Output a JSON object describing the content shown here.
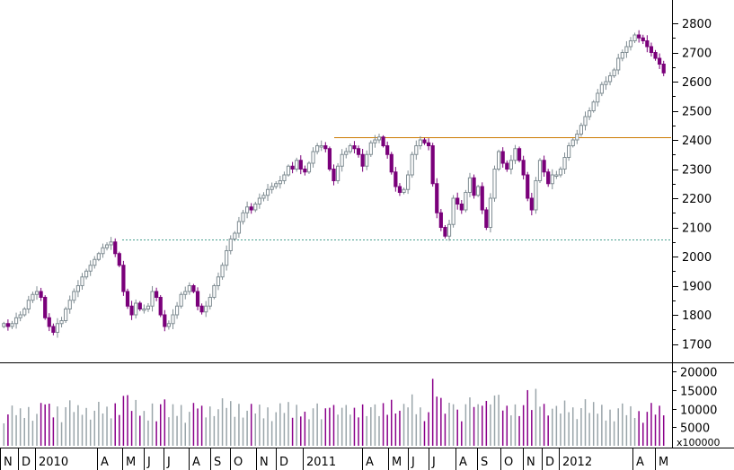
{
  "colors": {
    "up": "#7f8c92",
    "down": "#7a007a",
    "volume_up": "#9aa5aa",
    "volume_down": "#8a008a",
    "resistance": "#cc7a00",
    "support": "#4aa090"
  },
  "chart_data": {
    "type": "candlestick",
    "interval": "weekly",
    "grid": false,
    "price_axis": {
      "position": "right",
      "ylim": [
        1640,
        2880
      ],
      "ticks": [
        1700,
        1800,
        1900,
        2000,
        2100,
        2200,
        2300,
        2400,
        2500,
        2600,
        2700,
        2800
      ]
    },
    "volume_axis": {
      "position": "right",
      "ylim": [
        0,
        22000
      ],
      "ticks": [
        5000,
        10000,
        15000,
        20000
      ],
      "multiplier_label": "x100000"
    },
    "time_axis": {
      "labels": [
        "N",
        "D",
        "2010",
        "A",
        "M",
        "J",
        "J",
        "A",
        "S",
        "O",
        "N",
        "D",
        "2011",
        "A",
        "M",
        "J",
        "J",
        "A",
        "S",
        "O",
        "N",
        "D",
        "2012",
        "A",
        "M"
      ]
    },
    "horizontal_lines": [
      {
        "value": 2410,
        "style": "solid",
        "color_key": "resistance"
      },
      {
        "value": 2057,
        "style": "dotted",
        "color_key": "support"
      }
    ],
    "close": [
      1770,
      1760,
      1770,
      1790,
      1800,
      1820,
      1850,
      1870,
      1880,
      1860,
      1790,
      1760,
      1740,
      1770,
      1780,
      1820,
      1850,
      1880,
      1900,
      1930,
      1950,
      1970,
      1990,
      2010,
      2030,
      2040,
      2050,
      2010,
      1970,
      1880,
      1830,
      1800,
      1840,
      1820,
      1820,
      1830,
      1880,
      1860,
      1800,
      1760,
      1770,
      1800,
      1830,
      1870,
      1880,
      1900,
      1880,
      1830,
      1810,
      1830,
      1860,
      1900,
      1930,
      1970,
      2020,
      2060,
      2080,
      2120,
      2150,
      2170,
      2160,
      2180,
      2200,
      2210,
      2230,
      2240,
      2250,
      2260,
      2280,
      2310,
      2300,
      2330,
      2300,
      2290,
      2320,
      2360,
      2380,
      2380,
      2370,
      2300,
      2260,
      2310,
      2350,
      2360,
      2380,
      2370,
      2350,
      2310,
      2350,
      2390,
      2400,
      2410,
      2380,
      2350,
      2290,
      2240,
      2220,
      2230,
      2280,
      2350,
      2380,
      2400,
      2390,
      2380,
      2250,
      2150,
      2100,
      2070,
      2110,
      2200,
      2180,
      2160,
      2220,
      2270,
      2210,
      2240,
      2160,
      2100,
      2200,
      2300,
      2360,
      2320,
      2300,
      2330,
      2370,
      2330,
      2280,
      2200,
      2160,
      2260,
      2330,
      2290,
      2250,
      2280,
      2280,
      2300,
      2340,
      2380,
      2400,
      2420,
      2450,
      2480,
      2500,
      2530,
      2560,
      2590,
      2600,
      2620,
      2640,
      2680,
      2700,
      2720,
      2740,
      2760,
      2750,
      2740,
      2720,
      2700,
      2680,
      2660,
      2630
    ]
  }
}
